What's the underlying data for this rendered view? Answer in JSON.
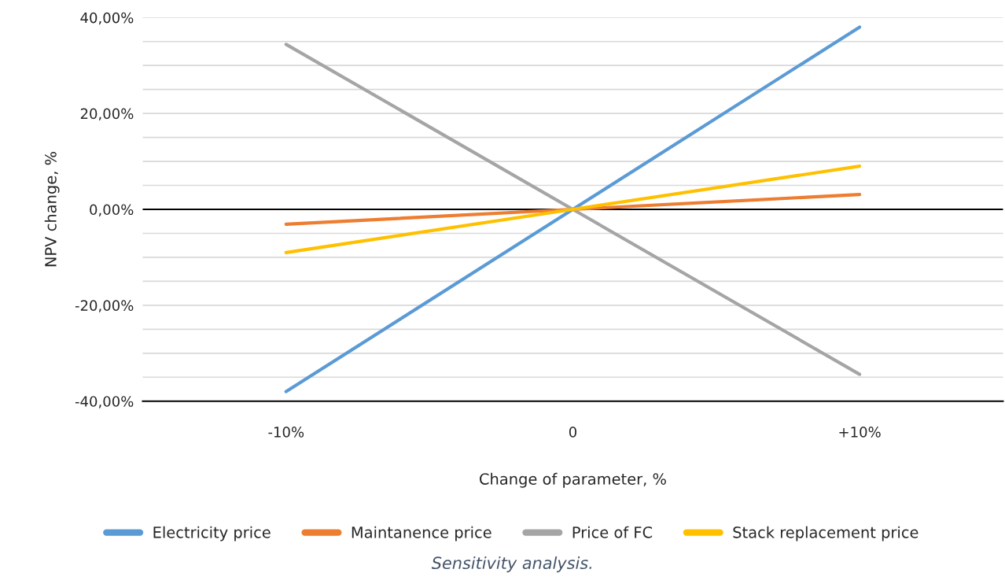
{
  "chart_data": {
    "type": "line",
    "xlabel": "Change of parameter, %",
    "ylabel": "NPV change, %",
    "categories": [
      "-10%",
      "0",
      "+10%"
    ],
    "series": [
      {
        "name": "Electricity price",
        "color": "#5b9bd5",
        "values": [
          -38,
          0,
          38
        ]
      },
      {
        "name": "Maintanence price",
        "color": "#ed7d31",
        "values": [
          -3.1,
          0,
          3.1
        ]
      },
      {
        "name": "Price of FC",
        "color": "#a5a5a5",
        "values": [
          34.4,
          0,
          -34.4
        ]
      },
      {
        "name": "Stack replacement price",
        "color": "#ffc000",
        "values": [
          -9,
          0,
          9
        ]
      }
    ],
    "ylim": [
      -40,
      40
    ],
    "yticks": [
      {
        "value": -40,
        "label": "-40,00%"
      },
      {
        "value": -35,
        "label": null
      },
      {
        "value": -30,
        "label": null
      },
      {
        "value": -25,
        "label": null
      },
      {
        "value": -20,
        "label": "-20,00%"
      },
      {
        "value": -15,
        "label": null
      },
      {
        "value": -10,
        "label": null
      },
      {
        "value": -5,
        "label": null
      },
      {
        "value": 0,
        "label": "0,00%"
      },
      {
        "value": 5,
        "label": null
      },
      {
        "value": 10,
        "label": null
      },
      {
        "value": 15,
        "label": null
      },
      {
        "value": 20,
        "label": "20,00%"
      },
      {
        "value": 25,
        "label": null
      },
      {
        "value": 30,
        "label": null
      },
      {
        "value": 35,
        "label": null
      },
      {
        "value": 40,
        "label": "40,00%"
      }
    ],
    "ref_lines": [
      {
        "axis": "y",
        "value": 0,
        "color": "#000000"
      }
    ],
    "grid": "y",
    "legend": "bottom",
    "marker": "none",
    "line_style": "solid",
    "annotations": [
      "Sensitivity analysis."
    ]
  }
}
